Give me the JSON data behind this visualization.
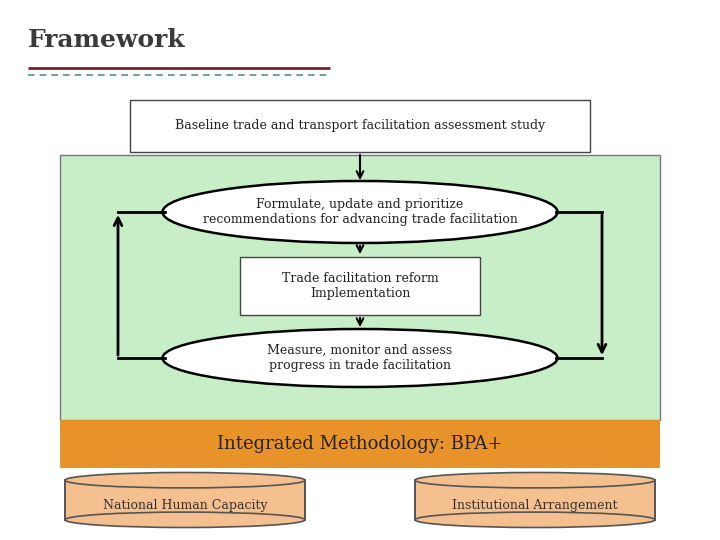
{
  "title": "Framework",
  "title_color": "#3a3a3a",
  "title_fontsize": 18,
  "line1_color": "#7a2030",
  "line2_color": "#4a9a7a",
  "bg_color": "#ffffff",
  "green_box_color": "#c8eec8",
  "orange_bar_color": "#e8922a",
  "cylinder_color": "#f5c090",
  "cylinder_edge_color": "#555555",
  "top_rect_text": "Baseline trade and transport facilitation assessment study",
  "ellipse1_text": "Formulate, update and prioritize\nrecommendations for advancing trade facilitation",
  "middle_rect_text": "Trade facilitation reform\nImplementation",
  "ellipse2_text": "Measure, monitor and assess\nprogress in trade facilitation",
  "orange_bar_text": "Integrated Methodology: BPA+",
  "cylinder1_text": "National Human Capacity",
  "cylinder2_text": "Institutional Arrangement"
}
